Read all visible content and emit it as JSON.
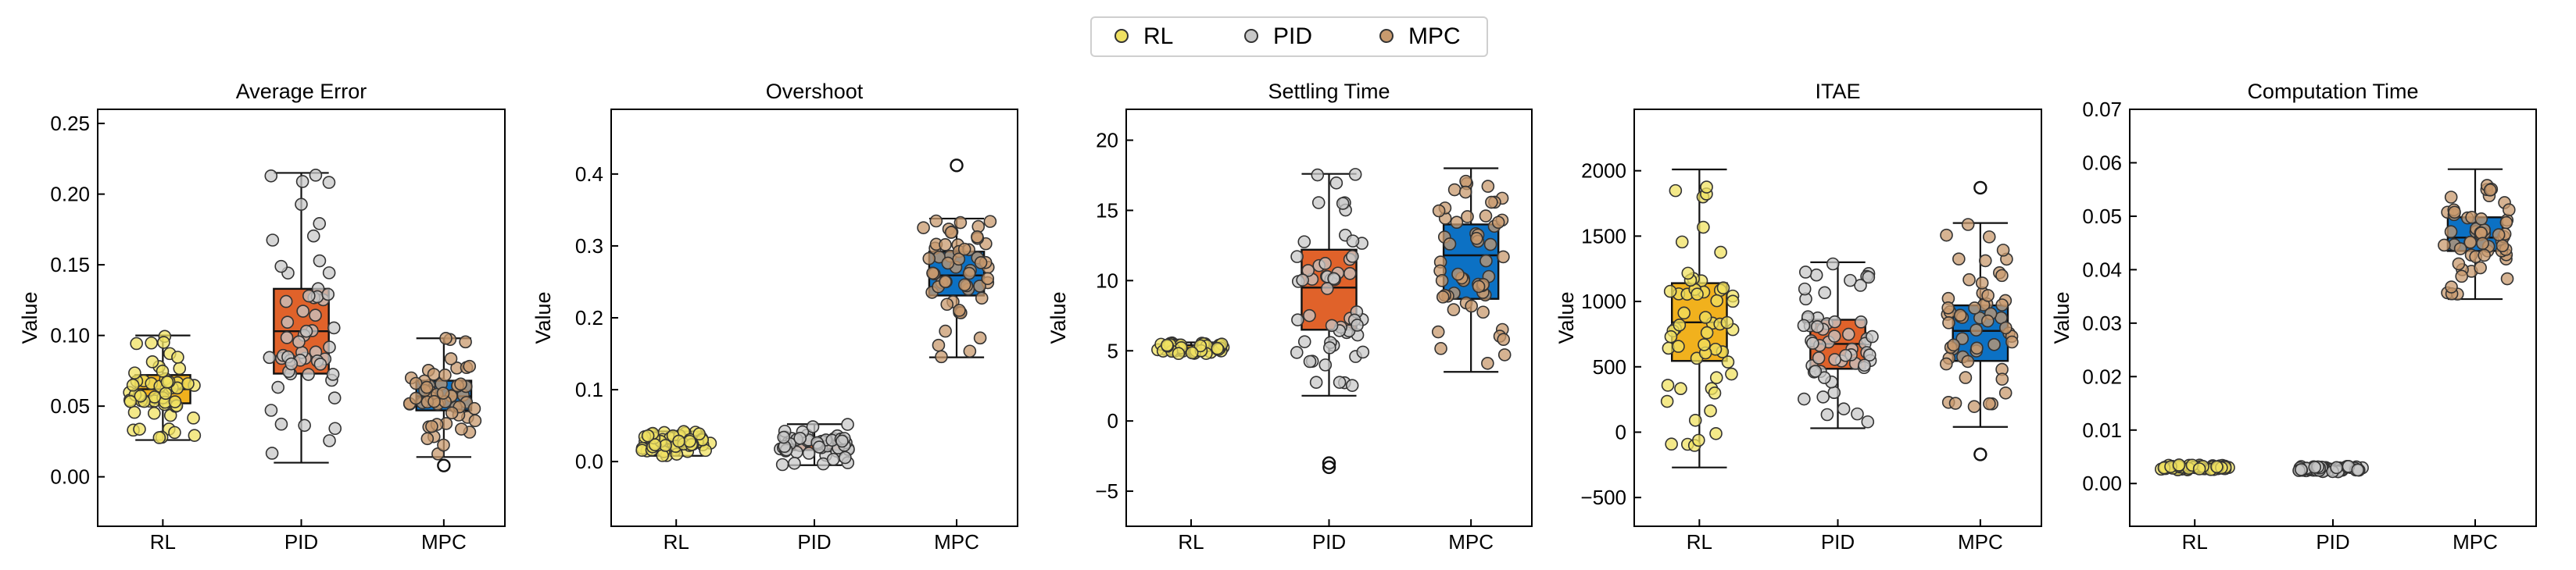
{
  "legend": {
    "entries": [
      {
        "label": "RL",
        "color": "#f0e162"
      },
      {
        "label": "PID",
        "color": "#c8c8c8"
      },
      {
        "label": "MPC",
        "color": "#c89a6e"
      }
    ]
  },
  "box_colors": {
    "RL": "#f1b11d",
    "PID": "#e0622a",
    "MPC": "#0c71c4"
  },
  "chart_data": [
    {
      "type": "box",
      "title": "Average Error",
      "ylabel": "Value",
      "categories": [
        "RL",
        "PID",
        "MPC"
      ],
      "ylim": [
        -0.035,
        0.26
      ],
      "yticks": [
        0.0,
        0.05,
        0.1,
        0.15,
        0.2,
        0.25
      ],
      "tick_labels": [
        "0.00",
        "0.05",
        "0.10",
        "0.15",
        "0.20",
        "0.25"
      ],
      "boxes": [
        {
          "q1": 0.052,
          "median": 0.062,
          "q3": 0.072,
          "whisker_low": 0.026,
          "whisker_high": 0.1,
          "outliers": []
        },
        {
          "q1": 0.073,
          "median": 0.103,
          "q3": 0.133,
          "whisker_low": 0.01,
          "whisker_high": 0.215,
          "outliers": []
        },
        {
          "q1": 0.047,
          "median": 0.057,
          "q3": 0.068,
          "whisker_low": 0.014,
          "whisker_high": 0.098,
          "outliers": [
            0.008
          ]
        }
      ]
    },
    {
      "type": "box",
      "title": "Overshoot",
      "ylabel": "Value",
      "categories": [
        "RL",
        "PID",
        "MPC"
      ],
      "ylim": [
        -0.09,
        0.49
      ],
      "yticks": [
        0.0,
        0.1,
        0.2,
        0.3,
        0.4
      ],
      "tick_labels": [
        "0.0",
        "0.1",
        "0.2",
        "0.3",
        "0.4"
      ],
      "boxes": [
        {
          "q1": 0.02,
          "median": 0.025,
          "q3": 0.031,
          "whisker_low": 0.008,
          "whisker_high": 0.042,
          "outliers": []
        },
        {
          "q1": 0.016,
          "median": 0.024,
          "q3": 0.032,
          "whisker_low": -0.005,
          "whisker_high": 0.052,
          "outliers": []
        },
        {
          "q1": 0.231,
          "median": 0.259,
          "q3": 0.292,
          "whisker_low": 0.145,
          "whisker_high": 0.338,
          "outliers": [
            0.412
          ]
        }
      ]
    },
    {
      "type": "box",
      "title": "Settling Time",
      "ylabel": "Value",
      "categories": [
        "RL",
        "PID",
        "MPC"
      ],
      "ylim": [
        -7.5,
        22.2
      ],
      "yticks": [
        -5,
        0,
        5,
        10,
        15,
        20
      ],
      "tick_labels": [
        "−5",
        "0",
        "5",
        "10",
        "15",
        "20"
      ],
      "boxes": [
        {
          "q1": 5.0,
          "median": 5.2,
          "q3": 5.4,
          "whisker_low": 4.8,
          "whisker_high": 5.6,
          "outliers": []
        },
        {
          "q1": 6.5,
          "median": 9.5,
          "q3": 12.2,
          "whisker_low": 1.8,
          "whisker_high": 17.6,
          "outliers": [
            -3.0,
            -3.3
          ]
        },
        {
          "q1": 8.7,
          "median": 11.8,
          "q3": 14.0,
          "whisker_low": 3.5,
          "whisker_high": 18.0,
          "outliers": []
        }
      ]
    },
    {
      "type": "box",
      "title": "ITAE",
      "ylabel": "Value",
      "categories": [
        "RL",
        "PID",
        "MPC"
      ],
      "ylim": [
        -720,
        2470
      ],
      "yticks": [
        -500,
        0,
        500,
        1000,
        1500,
        2000
      ],
      "tick_labels": [
        "−500",
        "0",
        "500",
        "1000",
        "1500",
        "2000"
      ],
      "boxes": [
        {
          "q1": 545,
          "median": 840,
          "q3": 1140,
          "whisker_low": -270,
          "whisker_high": 2010,
          "outliers": []
        },
        {
          "q1": 485,
          "median": 675,
          "q3": 860,
          "whisker_low": 30,
          "whisker_high": 1300,
          "outliers": []
        },
        {
          "q1": 545,
          "median": 775,
          "q3": 970,
          "whisker_low": 40,
          "whisker_high": 1600,
          "outliers": [
            1870,
            -170
          ]
        }
      ]
    },
    {
      "type": "box",
      "title": "Computation Time",
      "ylabel": "Value",
      "categories": [
        "RL",
        "PID",
        "MPC"
      ],
      "ylim": [
        -0.008,
        0.07
      ],
      "yticks": [
        0.0,
        0.01,
        0.02,
        0.03,
        0.04,
        0.05,
        0.06,
        0.07
      ],
      "tick_labels": [
        "0.00",
        "0.01",
        "0.02",
        "0.03",
        "0.04",
        "0.05",
        "0.06",
        "0.07"
      ],
      "boxes": [
        {
          "q1": 0.0028,
          "median": 0.003,
          "q3": 0.0032,
          "whisker_low": 0.0025,
          "whisker_high": 0.0035,
          "outliers": []
        },
        {
          "q1": 0.0025,
          "median": 0.0027,
          "q3": 0.0029,
          "whisker_low": 0.0022,
          "whisker_high": 0.0032,
          "outliers": []
        },
        {
          "q1": 0.0435,
          "median": 0.046,
          "q3": 0.0498,
          "whisker_low": 0.0345,
          "whisker_high": 0.0588,
          "outliers": []
        }
      ]
    }
  ]
}
